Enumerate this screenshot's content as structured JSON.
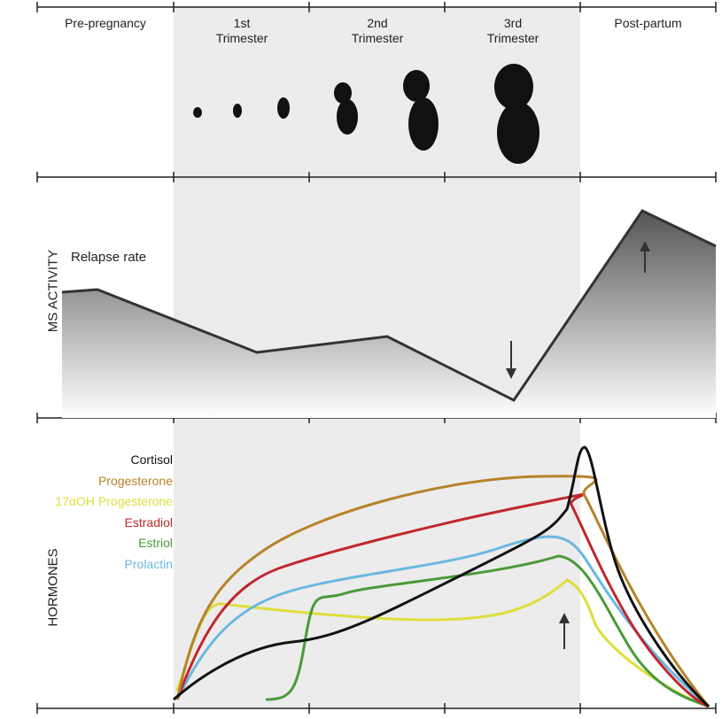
{
  "columns": [
    "Pre-pregnancy",
    "1st Trimester",
    "2nd Trimester",
    "3rd Trimester",
    "Post-partum"
  ],
  "activity": {
    "axis_label": "MS ACTIVITY",
    "label": "Relapse rate"
  },
  "hormones": {
    "axis_label": "HORMONES",
    "legend": [
      {
        "name": "Cortisol",
        "color": "#111111"
      },
      {
        "name": "Progesterone",
        "color": "#b5832a"
      },
      {
        "name": "17αOH Progesterone",
        "color": "#dede3c"
      },
      {
        "name": "Estradiol",
        "color": "#c0282d"
      },
      {
        "name": "Estriol",
        "color": "#4a9a3a"
      },
      {
        "name": "Prolactin",
        "color": "#6ab8e0"
      }
    ]
  }
}
